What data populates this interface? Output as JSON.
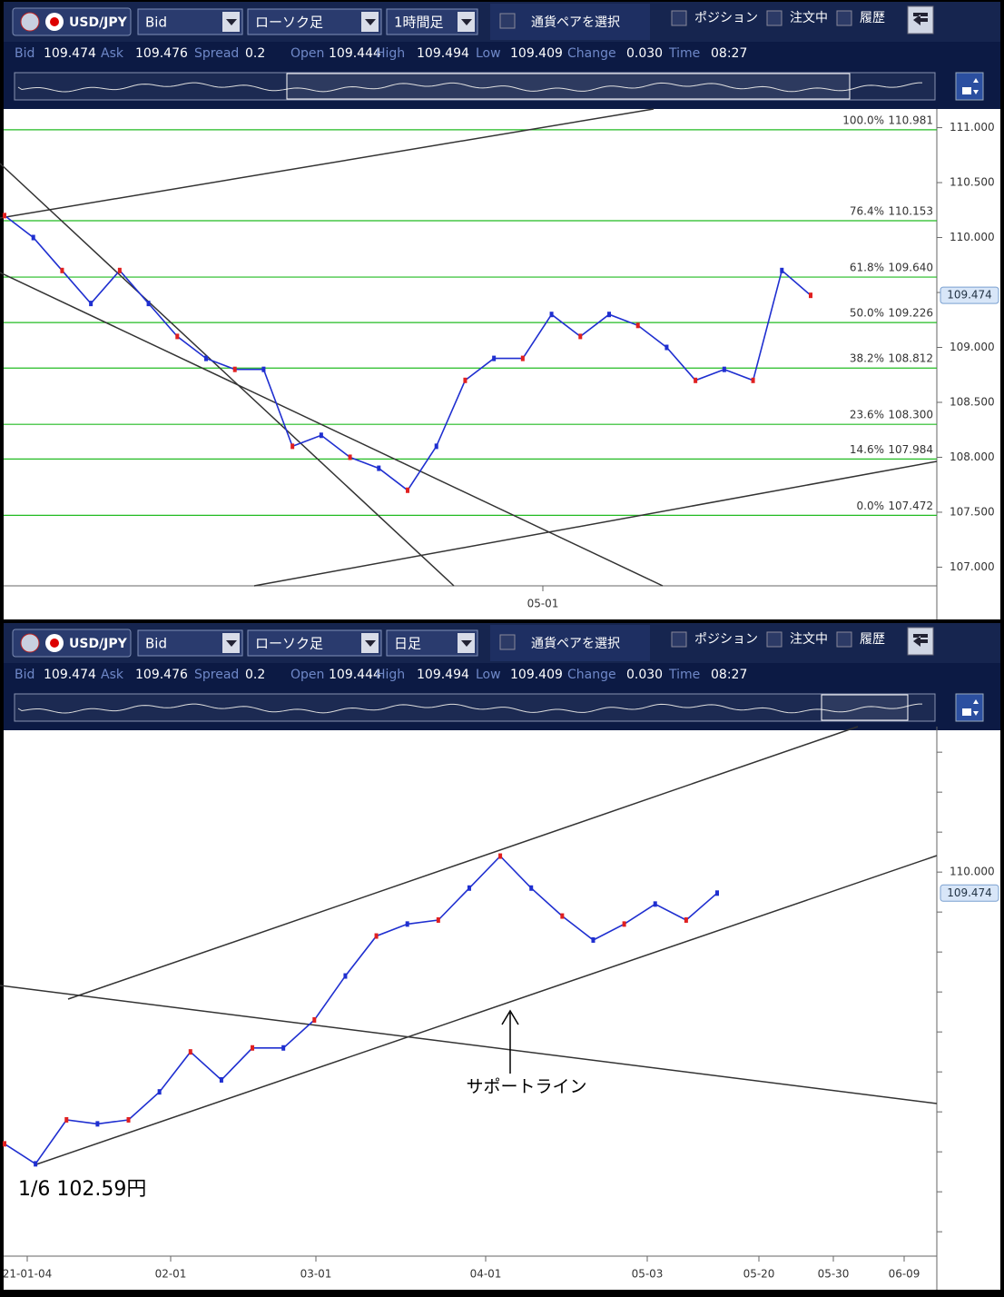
{
  "panels": [
    {
      "toolbar": {
        "pair": "USD/JPY",
        "price_type": "Bid",
        "chart_type": "ローソク足",
        "timeframe": "1時間足",
        "pair_select": "通貨ペアを選択",
        "tabs": [
          "ポジション",
          "注文中",
          "履歴"
        ]
      },
      "quote": [
        {
          "label": "Bid",
          "value": "109.474"
        },
        {
          "label": "Ask",
          "value": "109.476"
        },
        {
          "label": "Spread",
          "value": "0.2"
        },
        {
          "label": "Open",
          "value": "109.444"
        },
        {
          "label": "High",
          "value": "109.494"
        },
        {
          "label": "Low",
          "value": "109.409"
        },
        {
          "label": "Change",
          "value": "0.030"
        },
        {
          "label": "Time",
          "value": "08:27"
        }
      ],
      "chart": {
        "type": "line",
        "ylim": [
          106.83,
          111.17
        ],
        "yticks": [
          {
            "value": 111,
            "label": "111.000"
          },
          {
            "value": 110.5,
            "label": "110.500"
          },
          {
            "value": 110,
            "label": "110.000"
          },
          {
            "value": 109.5,
            "label": "109.500"
          },
          {
            "value": 109,
            "label": "109.000"
          },
          {
            "value": 108.5,
            "label": "108.500"
          },
          {
            "value": 108,
            "label": "108.000"
          },
          {
            "value": 107.5,
            "label": "107.500"
          },
          {
            "value": 107,
            "label": "107.000"
          }
        ],
        "minor_yticks": [],
        "xlabels": [
          "05-01"
        ],
        "fib_levels": [
          {
            "pct": "100.0%",
            "value": 110.981,
            "label": "110.981"
          },
          {
            "pct": "76.4%",
            "value": 110.153,
            "label": "110.153"
          },
          {
            "pct": "61.8%",
            "value": 109.64,
            "label": "109.640"
          },
          {
            "pct": "50.0%",
            "value": 109.226,
            "label": "109.226"
          },
          {
            "pct": "38.2%",
            "value": 108.812,
            "label": "108.812"
          },
          {
            "pct": "23.6%",
            "value": 108.3,
            "label": "108.300"
          },
          {
            "pct": "14.6%",
            "value": 107.984,
            "label": "107.984"
          },
          {
            "pct": "0.0%",
            "value": 107.472,
            "label": "107.472"
          }
        ],
        "current": {
          "value": 109.474,
          "label": "109.474"
        },
        "color": "#1f2fd0",
        "values": [
          110.2,
          110.0,
          109.7,
          109.4,
          109.7,
          109.4,
          109.1,
          108.9,
          108.8,
          108.8,
          108.1,
          108.2,
          108.0,
          107.9,
          107.7,
          108.1,
          108.7,
          108.9,
          108.9,
          109.3,
          109.1,
          109.3,
          109.2,
          109.0,
          108.7,
          108.8,
          108.7,
          109.7,
          109.474
        ],
        "annotations": []
      }
    },
    {
      "toolbar": {
        "pair": "USD/JPY",
        "price_type": "Bid",
        "chart_type": "ローソク足",
        "timeframe": "日足",
        "pair_select": "通貨ペアを選択",
        "tabs": [
          "ポジション",
          "注文中",
          "履歴"
        ]
      },
      "quote": [
        {
          "label": "Bid",
          "value": "109.474"
        },
        {
          "label": "Ask",
          "value": "109.476"
        },
        {
          "label": "Spread",
          "value": "0.2"
        },
        {
          "label": "Open",
          "value": "109.444"
        },
        {
          "label": "High",
          "value": "109.494"
        },
        {
          "label": "Low",
          "value": "109.409"
        },
        {
          "label": "Change",
          "value": "0.030"
        },
        {
          "label": "Time",
          "value": "08:27"
        }
      ],
      "chart": {
        "type": "line",
        "ylim": [
          100.39,
          113.64
        ],
        "yticks": [
          {
            "value": 110,
            "label": "110.000"
          }
        ],
        "minor_yticks": [
          113,
          112,
          111,
          109,
          108,
          107,
          106,
          105,
          104,
          103,
          102,
          101
        ],
        "xlabels": [
          "21-01-04",
          "02-01",
          "03-01",
          "04-01",
          "05-03",
          "05-20",
          "05-30",
          "06-09"
        ],
        "fib_levels": [],
        "current": {
          "value": 109.474,
          "label": "109.474"
        },
        "color": "#1f2fd0",
        "values": [
          103.2,
          102.7,
          103.8,
          103.7,
          103.8,
          104.5,
          105.5,
          104.8,
          105.6,
          105.6,
          106.3,
          107.4,
          108.4,
          108.7,
          108.8,
          109.6,
          110.4,
          109.6,
          108.9,
          108.3,
          108.7,
          109.2,
          108.8,
          109.474
        ],
        "annotations": [
          "サポートライン",
          "1/6  102.59円"
        ]
      }
    }
  ]
}
